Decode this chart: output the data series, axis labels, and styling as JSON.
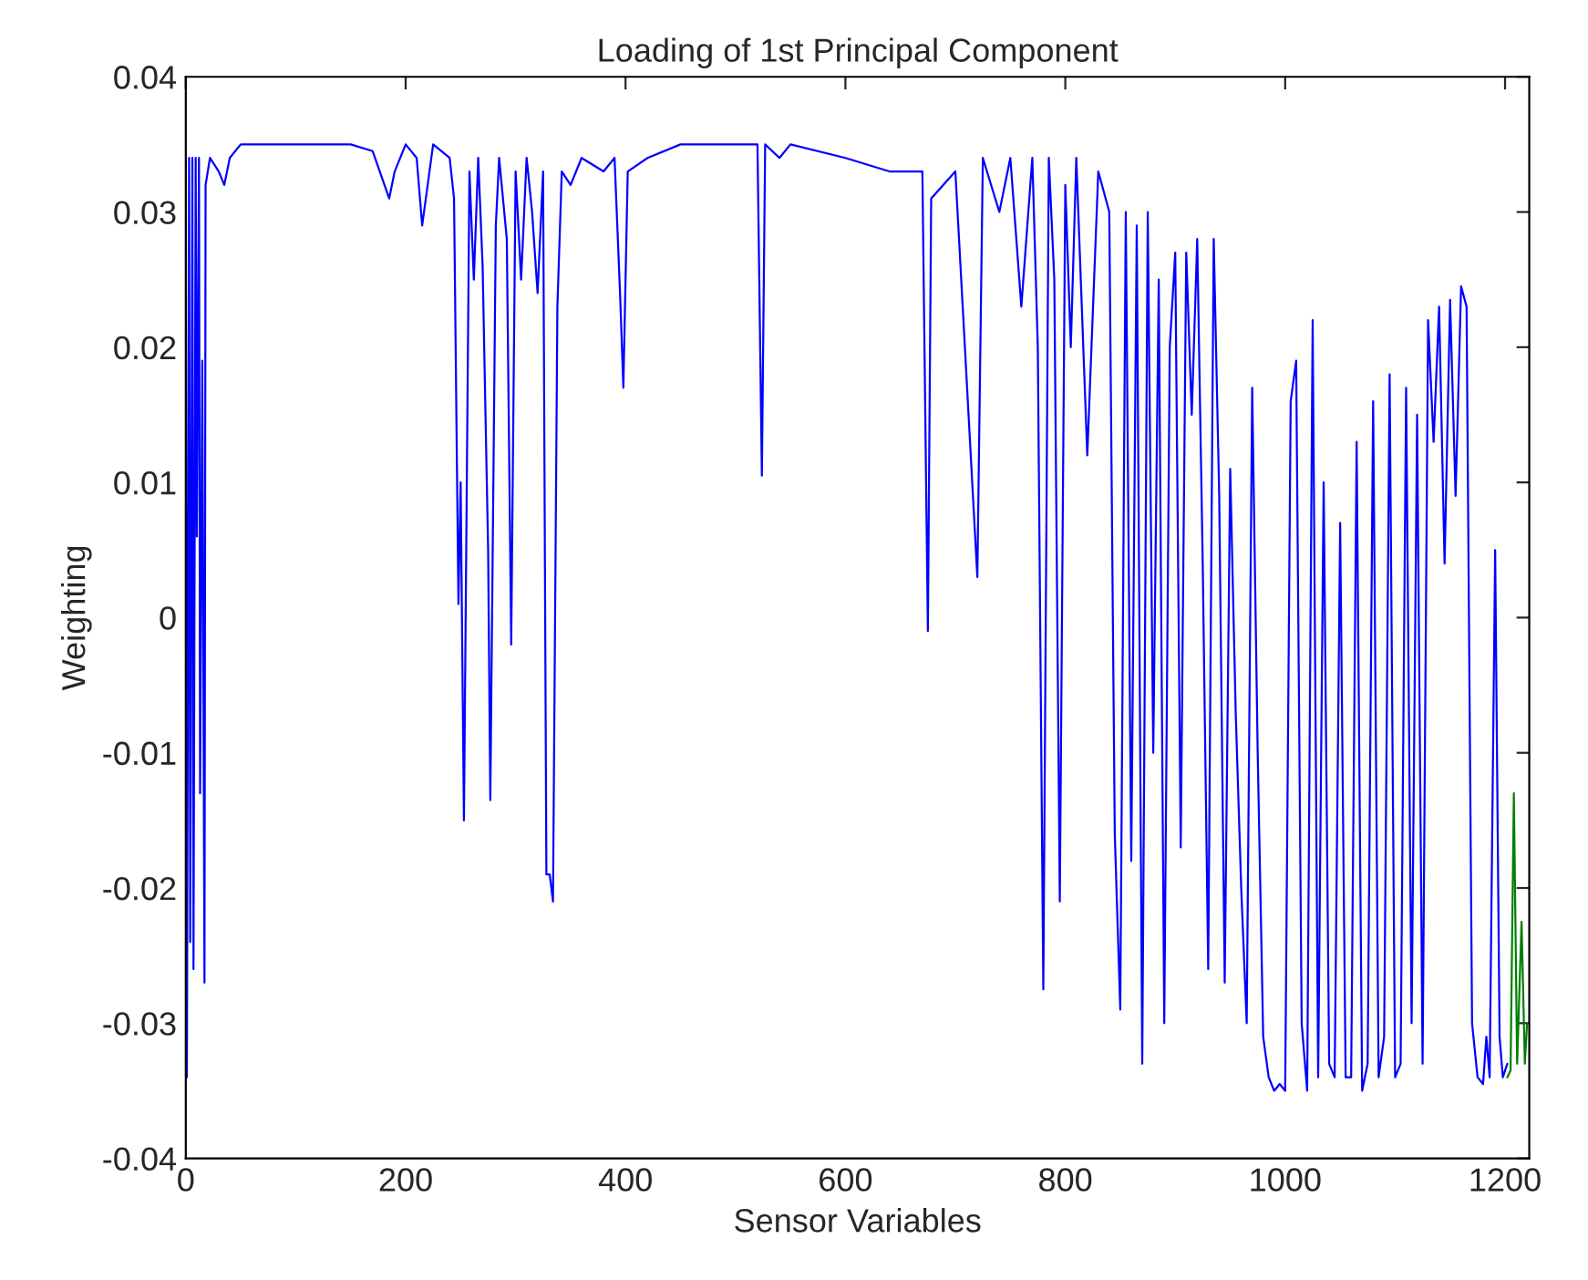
{
  "chart_data": {
    "type": "line",
    "title": "Loading of 1st Principal Component",
    "xlabel": "Sensor Variables",
    "ylabel": "Weighting",
    "xlim": [
      0,
      1222
    ],
    "ylim": [
      -0.04,
      0.04
    ],
    "xticks": [
      0,
      200,
      400,
      600,
      800,
      1000,
      1200
    ],
    "yticks": [
      {
        "value": -0.04,
        "label": "-0.04"
      },
      {
        "value": -0.03,
        "label": "-0.03"
      },
      {
        "value": -0.02,
        "label": "-0.02"
      },
      {
        "value": -0.01,
        "label": "-0.01"
      },
      {
        "value": 0,
        "label": "0"
      },
      {
        "value": 0.01,
        "label": "0.01"
      },
      {
        "value": 0.02,
        "label": "0.02"
      },
      {
        "value": 0.03,
        "label": "0.03"
      },
      {
        "value": 0.04,
        "label": "0.04"
      }
    ],
    "grid": false,
    "marker": "none",
    "line_style": "solid",
    "series": [
      {
        "color": "#0000ff",
        "x": [
          0,
          1,
          3,
          4,
          6,
          7,
          9,
          10,
          12,
          13,
          15,
          17,
          18,
          22,
          30,
          35,
          40,
          50,
          100,
          150,
          170,
          185,
          190,
          200,
          210,
          215,
          225,
          240,
          244,
          248,
          250,
          253,
          258,
          262,
          266,
          270,
          275,
          277,
          282,
          285,
          292,
          296,
          300,
          305,
          310,
          315,
          320,
          325,
          328,
          331,
          334,
          338,
          342,
          350,
          360,
          380,
          390,
          395,
          398,
          402,
          420,
          450,
          500,
          510,
          520,
          524,
          527,
          540,
          550,
          600,
          640,
          670,
          675,
          678,
          700,
          720,
          725,
          740,
          750,
          760,
          770,
          775,
          780,
          785,
          790,
          795,
          800,
          805,
          810,
          820,
          830,
          840,
          845,
          850,
          855,
          860,
          865,
          870,
          875,
          880,
          885,
          890,
          895,
          900,
          905,
          910,
          915,
          920,
          925,
          930,
          935,
          940,
          945,
          950,
          955,
          960,
          965,
          970,
          975,
          980,
          985,
          990,
          995,
          1000,
          1005,
          1010,
          1015,
          1020,
          1025,
          1030,
          1035,
          1040,
          1045,
          1050,
          1055,
          1060,
          1065,
          1070,
          1075,
          1080,
          1085,
          1090,
          1095,
          1100,
          1105,
          1110,
          1115,
          1120,
          1125,
          1130,
          1135,
          1140,
          1145,
          1150,
          1155,
          1160,
          1165,
          1170,
          1175,
          1180,
          1183,
          1186,
          1191,
          1195,
          1198,
          1202
        ],
        "values": [
          0.034,
          -0.034,
          0.034,
          -0.024,
          0.034,
          -0.026,
          0.034,
          0.006,
          0.034,
          -0.013,
          0.019,
          -0.027,
          0.032,
          0.034,
          0.033,
          0.032,
          0.034,
          0.035,
          0.035,
          0.035,
          0.0345,
          0.031,
          0.033,
          0.035,
          0.034,
          0.029,
          0.035,
          0.034,
          0.031,
          0.001,
          0.01,
          -0.015,
          0.033,
          0.025,
          0.034,
          0.026,
          0.005,
          -0.0135,
          0.029,
          0.034,
          0.028,
          -0.002,
          0.033,
          0.025,
          0.034,
          0.03,
          0.024,
          0.033,
          -0.019,
          -0.019,
          -0.021,
          0.023,
          0.033,
          0.032,
          0.034,
          0.033,
          0.034,
          0.024,
          0.017,
          0.033,
          0.034,
          0.035,
          0.035,
          0.035,
          0.035,
          0.0105,
          0.035,
          0.034,
          0.035,
          0.034,
          0.033,
          0.033,
          -0.001,
          0.031,
          0.033,
          0.003,
          0.034,
          0.03,
          0.034,
          0.023,
          0.034,
          0.02,
          -0.0275,
          0.034,
          0.025,
          -0.021,
          0.032,
          0.02,
          0.034,
          0.012,
          0.033,
          0.03,
          -0.016,
          -0.029,
          0.03,
          -0.018,
          0.029,
          -0.033,
          0.03,
          -0.01,
          0.025,
          -0.03,
          0.02,
          0.027,
          -0.017,
          0.027,
          0.015,
          0.028,
          0.004,
          -0.026,
          0.028,
          0.009,
          -0.027,
          0.011,
          -0.007,
          -0.02,
          -0.03,
          0.017,
          -0.01,
          -0.031,
          -0.034,
          -0.035,
          -0.0345,
          -0.035,
          0.016,
          0.019,
          -0.03,
          -0.035,
          0.022,
          -0.034,
          0.01,
          -0.033,
          -0.034,
          0.007,
          -0.034,
          -0.034,
          0.013,
          -0.035,
          -0.033,
          0.016,
          -0.034,
          -0.031,
          0.018,
          -0.034,
          -0.033,
          0.017,
          -0.03,
          0.015,
          -0.033,
          0.022,
          0.013,
          0.023,
          0.004,
          0.0235,
          0.009,
          0.0245,
          0.023,
          -0.03,
          -0.034,
          -0.0345,
          -0.031,
          -0.034,
          0.005,
          -0.031,
          -0.034,
          -0.033
        ]
      },
      {
        "color": "#008000",
        "x": [
          1202,
          1205,
          1208,
          1211,
          1215,
          1218,
          1220
        ],
        "values": [
          -0.034,
          -0.0335,
          -0.013,
          -0.033,
          -0.0225,
          -0.033,
          -0.03
        ]
      }
    ]
  }
}
